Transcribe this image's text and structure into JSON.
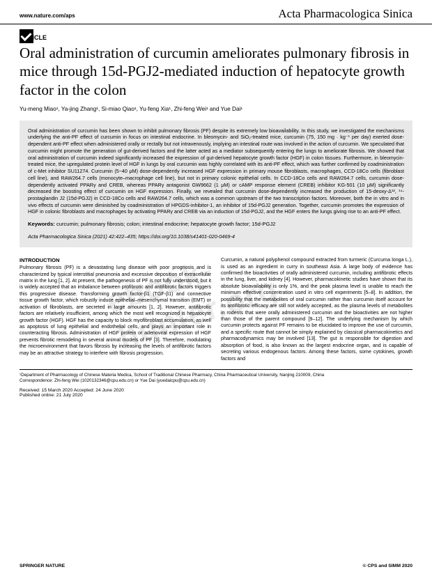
{
  "header": {
    "site_url": "www.nature.com/aps",
    "journal_name": "Acta Pharmacologica Sinica"
  },
  "watermark": "ebook-hunter.org",
  "article_type": "ARTICLE",
  "title": "Oral administration of curcumin ameliorates pulmonary fibrosis in mice through 15d-PGJ2-mediated induction of hepatocyte growth factor in the colon",
  "authors": "Yu-meng Miao¹, Ya-jing Zhang¹, Si-miao Qiao¹, Yu-feng Xia¹, Zhi-feng Wei¹ and Yue Dai¹",
  "abstract": "Oral administration of curcumin has been shown to inhibit pulmonary fibrosis (PF) despite its extremely low bioavailability. In this study, we investigated the mechanisms underlying the anti-PF effect of curcumin in focus on intestinal endocrine. In bleomycin- and SiO₂-treated mice, curcumin (75, 150 mg · kg⁻¹ per day) exerted dose-dependent anti-PF effect when administered orally or rectally but not intravenously, implying an intestinal route was involved in the action of curcumin. We speculated that curcumin might promote the generation of gut-derived factors and the latter acted as a mediator subsequently entering the lungs to ameliorate fibrosis. We showed that oral administration of curcumin indeed significantly increased the expression of gut-derived hepatocyte growth factor (HGF) in colon tissues. Furthermore, in bleomycin-treated mice, the upregulated protein level of HGF in lungs by oral curcumin was highly correlated with its anti-PF effect, which was further confirmed by coadministration of c-Met inhibitor SU11274. Curcumin (5−40 μM) dose-dependently increased HGF expression in primary mouse fibroblasts, macrophages, CCD-18Co cells (fibroblast cell line), and RAW264.7 cells (monocyte–macrophage cell line), but not in primary colonic epithelial cells. In CCD-18Co cells and RAW264.7 cells, curcumin dose-dependently activated PPARγ and CREB, whereas PPARγ antagonist GW9662 (1 μM) or cAMP response element (CREB) inhibitor KG-501 (10 μM) significantly decreased the boosting effect of curcumin on HGF expression. Finally, we revealed that curcumin dose-dependently increased the production of 15-deoxy-Δ¹², ¹⁴-prostaglandin J2 (15d-PGJ2) in CCD-18Co cells and RAW264.7 cells, which was a common upstream of the two transcription factors. Moreover, both the in vitro and in vivo effects of curcumin were diminished by coadministration of HPGDS-inhibitor-1, an inhibitor of 15d-PGJ2 generation. Together, curcumin promotes the expression of HGF in colonic fibroblasts and macrophages by activating PPARγ and CREB via an induction of 15d-PGJ2, and the HGF enters the lungs giving rise to an anti-PF effect.",
  "keywords_label": "Keywords:",
  "keywords": " curcumin; pulmonary fibrosis; colon; intestinal endocrine; hepatocyte growth factor; 15d-PGJ2",
  "citation": "Acta Pharmacologica Sinica (2021) 42:422–435; https://doi.org/10.1038/s41401-020-0469-4",
  "intro_heading": "INTRODUCTION",
  "col1_p1": "Pulmonary fibrosis (PF) is a devastating lung disease with poor prognosis and is characterized by typical interstitial pneumonia and excessive deposition of extracellular matrix in the lung [1, 2]. At present, the pathogenesis of PF is not fully understood, but it is widely accepted that an imbalance between profibrotic and antifibrotic factors triggers this progressive disease. Transforming growth factor-β1 (TGF-β1) and connective tissue growth factor, which robustly induce epithelial–mesenchymal transition (EMT) or activation of fibroblasts, are secreted in large amounts [1, 2]. However, antifibrotic factors are relatively insufficient, among which the most well recognized is hepatocyte growth factor (HGF). HGF has the capacity to block myofibroblast accumulation, as well as apoptosis of lung epithelial and endothelial cells, and plays an important role in counteracting fibrosis. Administration of HGF protein or adenoviral expression of HGF prevents fibrotic remodeling in several animal models of PF [3]. Therefore, modulating the microenvironment that favors fibrosis by increasing the levels of antifibrotic factors may be an attractive strategy to interfere with fibrosis progression.",
  "col2_p1": "Curcumin, a natural polyphenol compound extracted from turmeric (Curcuma longa L.), is used as an ingredient in curry in southeast Asia. A large body of evidence has confirmed the bioactivities of orally administered curcumin, including antifibrotic effects in the lung, liver, and kidney [4]. However, pharmacokinetic studies have shown that its absolute bioavailability is only 1%, and the peak plasma level is unable to reach the minimum effective concentration used in vitro cell experiments [5–8]. In addition, the possibility that the metabolites of oral curcumin rather than curcumin itself account for its antifibrotic efficacy are still not widely accepted, as the plasma levels of metabolites in rodents that were orally administered curcumin and the bioactivities are not higher than those of the parent compound [9–12]. The underlying mechanism by which curcumin protects against PF remains to be elucidated to improve the use of curcumin, and a specific route that cannot be simply explained by classical pharmacokinetics and pharmacodynamics may be involved [13]. The gut is responsible for digestion and absorption of food, is also known as the largest endocrine organ, and is capable of secreting various endogenous factors. Among these factors, some cytokines, growth factors and",
  "affiliation": "¹Department of Pharmacology of Chinese Materia Medica, School of Traditional Chinese Pharmacy, China Pharmaceutical University, Nanjing 210009, China",
  "correspondence": "Correspondence: Zhi-feng Wei (1020132346@cpu.edu.cn) or Yue Dai (yuedaicpu@cpu.edu.cn)",
  "received": "Received: 15 March 2020 Accepted: 24 June 2020",
  "published": "Published online: 21 July 2020",
  "footer_left": "SPRINGER NATURE",
  "footer_right": "© CPS and SIMM 2020"
}
